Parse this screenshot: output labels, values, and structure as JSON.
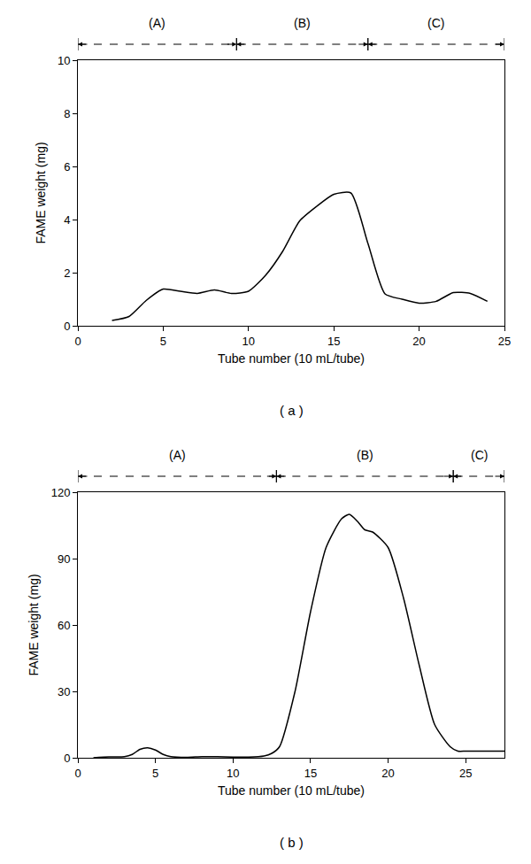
{
  "chart_data": [
    {
      "type": "line",
      "caption": "( a )",
      "x_label": "Tube number (10 mL/tube)",
      "y_label": "FAME weight (mg)",
      "x": [
        2,
        3,
        4,
        5,
        6,
        7,
        8,
        9,
        10,
        11,
        12,
        13,
        14,
        15,
        16,
        17,
        18,
        19,
        20,
        21,
        22,
        23,
        24
      ],
      "values": [
        0.2,
        0.35,
        0.95,
        1.38,
        1.3,
        1.22,
        1.35,
        1.22,
        1.3,
        1.9,
        2.8,
        3.95,
        4.5,
        4.95,
        5.0,
        3.1,
        1.2,
        1.0,
        0.85,
        0.92,
        1.25,
        1.22,
        0.92
      ],
      "color": "#000000",
      "xlim": [
        0,
        25
      ],
      "xticks": [
        0,
        5,
        10,
        15,
        20,
        25
      ],
      "ylim": [
        0,
        10
      ],
      "yticks": [
        0,
        2,
        4,
        6,
        8,
        10
      ],
      "grid": false,
      "regions": [
        {
          "label": "(A)",
          "start": 0,
          "end": 9.3
        },
        {
          "label": "(B)",
          "start": 9.3,
          "end": 17
        },
        {
          "label": "(C)",
          "start": 17,
          "end": 25
        }
      ]
    },
    {
      "type": "line",
      "caption": "( b )",
      "x_label": "Tube number (10 mL/tube)",
      "y_label": "FAME weight (mg)",
      "x": [
        1,
        2,
        3,
        3.5,
        4,
        4.5,
        5,
        5.5,
        6,
        7,
        8,
        9,
        10,
        11,
        12,
        12.5,
        13,
        14,
        15,
        16,
        17,
        17.5,
        18,
        18.5,
        19,
        20,
        21,
        22,
        23,
        24,
        24.5,
        25,
        26,
        27,
        27.5
      ],
      "values": [
        0,
        0.4,
        0.5,
        1.5,
        3.8,
        4.5,
        3.5,
        1.5,
        0.5,
        0.2,
        0.5,
        0.5,
        0.3,
        0.3,
        0.8,
        2,
        5,
        30,
        66,
        95,
        108,
        110,
        107,
        103,
        102,
        95,
        72,
        42,
        15,
        5,
        3,
        3,
        3,
        3,
        3
      ],
      "color": "#000000",
      "xlim": [
        0,
        27.5
      ],
      "xticks": [
        0,
        5,
        10,
        15,
        20,
        25
      ],
      "ylim": [
        0,
        120
      ],
      "yticks": [
        0,
        30,
        60,
        90,
        120
      ],
      "grid": false,
      "regions": [
        {
          "label": "(A)",
          "start": 0,
          "end": 12.8
        },
        {
          "label": "(B)",
          "start": 12.8,
          "end": 24.2
        },
        {
          "label": "(C)",
          "start": 24.2,
          "end": 27.5
        }
      ]
    }
  ]
}
